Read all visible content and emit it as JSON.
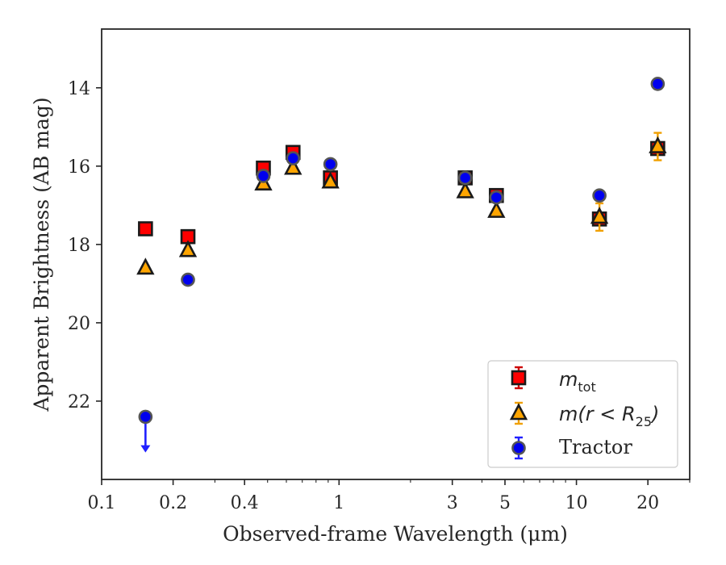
{
  "chart_data": {
    "type": "scatter",
    "title": "",
    "xlabel": "Observed-frame Wavelength (μm)",
    "ylabel": "Apparent Brightness (AB mag)",
    "xscale": "log",
    "xlim": [
      0.1,
      30
    ],
    "ylim": [
      24.0,
      12.5
    ],
    "y_inverted": true,
    "xticks": [
      {
        "value": 0.1,
        "label": "0.1"
      },
      {
        "value": 0.2,
        "label": "0.2"
      },
      {
        "value": 0.4,
        "label": "0.4"
      },
      {
        "value": 1,
        "label": "1"
      },
      {
        "value": 3,
        "label": "3"
      },
      {
        "value": 5,
        "label": "5"
      },
      {
        "value": 10,
        "label": "10"
      },
      {
        "value": 20,
        "label": "20"
      }
    ],
    "yticks": [
      {
        "value": 14,
        "label": "14"
      },
      {
        "value": 16,
        "label": "16"
      },
      {
        "value": 18,
        "label": "18"
      },
      {
        "value": 20,
        "label": "20"
      },
      {
        "value": 22,
        "label": "22"
      }
    ],
    "legend_position": "lower-right",
    "series": [
      {
        "name": "m_tot",
        "legend_main": "m",
        "legend_sub": "tot",
        "marker": "square",
        "color": "#ff0000",
        "edge": "#1a1a1a",
        "errcolor": "#cc0000",
        "points": [
          {
            "x": 0.153,
            "y": 17.6,
            "err": 0.05
          },
          {
            "x": 0.231,
            "y": 17.8,
            "err": 0.05
          },
          {
            "x": 0.48,
            "y": 16.05,
            "err": 0.05
          },
          {
            "x": 0.64,
            "y": 15.65,
            "err": 0.05
          },
          {
            "x": 0.92,
            "y": 16.3,
            "err": 0.05
          },
          {
            "x": 3.4,
            "y": 16.3,
            "err": 0.05
          },
          {
            "x": 4.6,
            "y": 16.75,
            "err": 0.05
          },
          {
            "x": 12.5,
            "y": 17.35,
            "err": 0.1
          },
          {
            "x": 22.0,
            "y": 15.55,
            "err": 0.1
          }
        ]
      },
      {
        "name": "m(r<R_25)",
        "legend_main": "m(r < R",
        "legend_sub": "25",
        "legend_tail": ")",
        "marker": "triangle",
        "color": "#ffa500",
        "edge": "#1a1a1a",
        "errcolor": "#f0a000",
        "points": [
          {
            "x": 0.153,
            "y": 18.6,
            "err": 0.05
          },
          {
            "x": 0.231,
            "y": 18.15,
            "err": 0.05
          },
          {
            "x": 0.48,
            "y": 16.45,
            "err": 0.05
          },
          {
            "x": 0.64,
            "y": 16.05,
            "err": 0.05
          },
          {
            "x": 0.92,
            "y": 16.4,
            "err": 0.05
          },
          {
            "x": 3.4,
            "y": 16.65,
            "err": 0.05
          },
          {
            "x": 4.6,
            "y": 17.15,
            "err": 0.05
          },
          {
            "x": 12.5,
            "y": 17.3,
            "err": 0.35
          },
          {
            "x": 22.0,
            "y": 15.5,
            "err": 0.35
          }
        ]
      },
      {
        "name": "Tractor",
        "marker": "circle",
        "color": "#0000ee",
        "edge": "#555555",
        "errcolor": "#2020ff",
        "points": [
          {
            "x": 0.153,
            "y": 22.4,
            "err": 0.0,
            "upper_limit": true
          },
          {
            "x": 0.231,
            "y": 18.9,
            "err": 0.03
          },
          {
            "x": 0.48,
            "y": 16.25,
            "err": 0.03
          },
          {
            "x": 0.64,
            "y": 15.8,
            "err": 0.03
          },
          {
            "x": 0.92,
            "y": 15.95,
            "err": 0.03
          },
          {
            "x": 3.4,
            "y": 16.3,
            "err": 0.03
          },
          {
            "x": 4.6,
            "y": 16.8,
            "err": 0.03
          },
          {
            "x": 12.5,
            "y": 16.75,
            "err": 0.05
          },
          {
            "x": 22.0,
            "y": 13.9,
            "err": 0.05
          }
        ]
      }
    ]
  }
}
